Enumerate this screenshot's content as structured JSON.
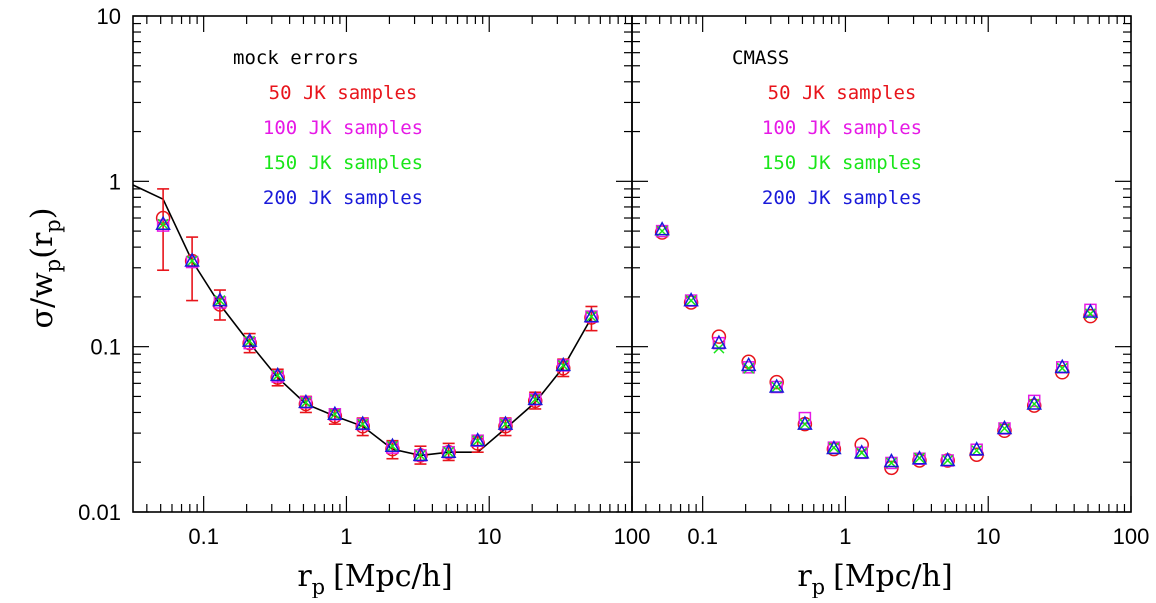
{
  "figure": {
    "ylabel": "σ/w",
    "ylabel_sub": "p",
    "ylabel_arg_open": "(r",
    "ylabel_arg_sub": "p",
    "ylabel_arg_close": ")",
    "xlabel_main": "r",
    "xlabel_sub": "p",
    "xlabel_unit": "[Mpc/h]",
    "y_tick_labels": [
      "10",
      "1",
      "0.1",
      "0.01"
    ],
    "x_tick_labels": [
      "0.1",
      "1",
      "10",
      "100"
    ]
  },
  "chart_data": [
    {
      "type": "scatter",
      "panel": "left",
      "x_scale": "log",
      "y_scale": "log",
      "xlim": [
        0.032,
        100
      ],
      "ylim": [
        0.01,
        10
      ],
      "legend_title": "mock errors",
      "legend_placement": "top-center",
      "x": [
        0.052,
        0.083,
        0.13,
        0.21,
        0.33,
        0.52,
        0.83,
        1.3,
        2.1,
        3.3,
        5.2,
        8.3,
        13,
        21,
        33,
        52
      ],
      "series": [
        {
          "name": "50 JK samples",
          "color": "#e8141b",
          "marker": "circle",
          "values": [
            0.6,
            0.33,
            0.18,
            0.105,
            0.065,
            0.045,
            0.038,
            0.033,
            0.024,
            0.022,
            0.023,
            0.026,
            0.033,
            0.047,
            0.074,
            0.15
          ],
          "err_low": [
            0.29,
            0.19,
            0.145,
            0.092,
            0.058,
            0.04,
            0.034,
            0.029,
            0.021,
            0.0195,
            0.0205,
            0.023,
            0.029,
            0.042,
            0.066,
            0.125
          ],
          "err_high": [
            0.9,
            0.46,
            0.22,
            0.12,
            0.073,
            0.05,
            0.042,
            0.037,
            0.027,
            0.025,
            0.026,
            0.029,
            0.037,
            0.053,
            0.084,
            0.175
          ]
        },
        {
          "name": "100 JK samples",
          "color": "#e619e6",
          "marker": "square",
          "values": [
            0.54,
            0.325,
            0.185,
            0.105,
            0.066,
            0.046,
            0.039,
            0.034,
            0.0245,
            0.022,
            0.023,
            0.027,
            0.034,
            0.048,
            0.077,
            0.152
          ]
        },
        {
          "name": "150 JK samples",
          "color": "#19e619",
          "marker": "cross",
          "values": [
            0.55,
            0.33,
            0.19,
            0.108,
            0.067,
            0.046,
            0.039,
            0.034,
            0.025,
            0.022,
            0.023,
            0.027,
            0.034,
            0.048,
            0.077,
            0.152
          ]
        },
        {
          "name": "200 JK samples",
          "color": "#1a1ad9",
          "marker": "triangle",
          "values": [
            0.55,
            0.33,
            0.19,
            0.108,
            0.067,
            0.046,
            0.039,
            0.034,
            0.025,
            0.022,
            0.023,
            0.027,
            0.034,
            0.048,
            0.077,
            0.152
          ]
        }
      ],
      "line": {
        "color": "#000000",
        "x": [
          0.032,
          0.052,
          0.083,
          0.13,
          0.21,
          0.33,
          0.52,
          0.83,
          1.3,
          2.1,
          3.3,
          5.2,
          8.3,
          13,
          21,
          33,
          52
        ],
        "values": [
          0.95,
          0.78,
          0.33,
          0.18,
          0.105,
          0.065,
          0.045,
          0.038,
          0.033,
          0.024,
          0.022,
          0.023,
          0.023,
          0.032,
          0.046,
          0.075,
          0.15
        ]
      }
    },
    {
      "type": "scatter",
      "panel": "right",
      "x_scale": "log",
      "y_scale": "log",
      "xlim": [
        0.032,
        100
      ],
      "ylim": [
        0.01,
        10
      ],
      "legend_title": "CMASS",
      "legend_placement": "top-center",
      "x": [
        0.052,
        0.083,
        0.13,
        0.21,
        0.33,
        0.52,
        0.83,
        1.3,
        2.1,
        3.3,
        5.2,
        8.3,
        13,
        21,
        33,
        52
      ],
      "series": [
        {
          "name": "50 JK samples",
          "color": "#e8141b",
          "marker": "circle",
          "values": [
            0.49,
            0.185,
            0.115,
            0.081,
            0.061,
            0.034,
            0.024,
            0.0255,
            0.0185,
            0.0205,
            0.0205,
            0.0222,
            0.031,
            0.044,
            0.07,
            0.153
          ]
        },
        {
          "name": "100 JK samples",
          "color": "#e619e6",
          "marker": "square",
          "values": [
            0.5,
            0.19,
            0.105,
            0.075,
            0.057,
            0.037,
            0.0245,
            0.0228,
            0.0198,
            0.021,
            0.0205,
            0.0238,
            0.032,
            0.047,
            0.075,
            0.167
          ]
        },
        {
          "name": "150 JK samples",
          "color": "#19e619",
          "marker": "cross",
          "values": [
            0.5,
            0.19,
            0.098,
            0.074,
            0.057,
            0.034,
            0.0245,
            0.0228,
            0.0198,
            0.0212,
            0.0205,
            0.0235,
            0.032,
            0.045,
            0.074,
            0.158
          ]
        },
        {
          "name": "200 JK samples",
          "color": "#1a1ad9",
          "marker": "triangle",
          "values": [
            0.51,
            0.19,
            0.105,
            0.077,
            0.057,
            0.034,
            0.0242,
            0.0228,
            0.0202,
            0.021,
            0.0205,
            0.0238,
            0.032,
            0.045,
            0.075,
            0.162
          ]
        }
      ]
    }
  ]
}
